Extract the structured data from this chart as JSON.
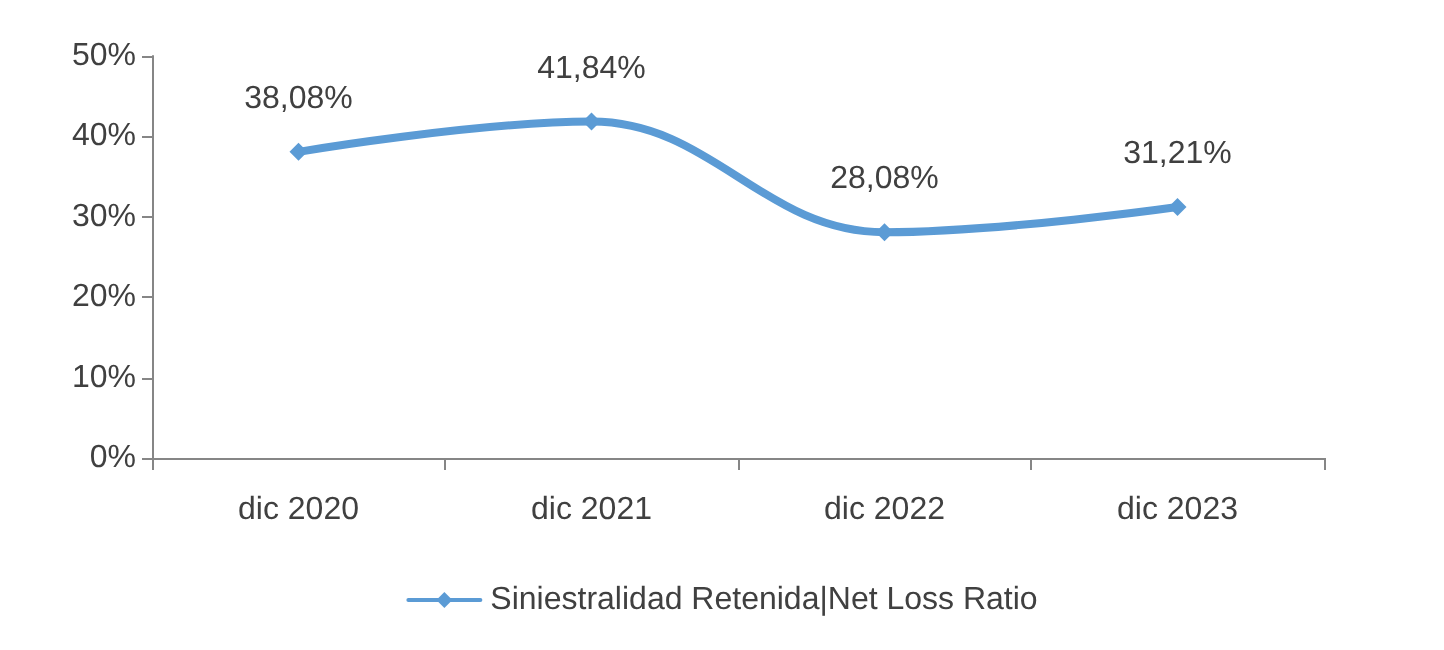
{
  "chart_data": {
    "type": "line",
    "categories": [
      "dic 2020",
      "dic 2021",
      "dic 2022",
      "dic 2023"
    ],
    "series": [
      {
        "name": "Siniestralidad Retenida|Net Loss Ratio",
        "color": "#5b9bd5",
        "values": [
          38.08,
          41.84,
          28.08,
          31.21
        ],
        "value_labels": [
          "38,08%",
          "41,84%",
          "28,08%",
          "31,21%"
        ]
      }
    ],
    "ylim": [
      0,
      50
    ],
    "yticks": [
      {
        "value": 0,
        "label": "0%"
      },
      {
        "value": 10,
        "label": "10%"
      },
      {
        "value": 20,
        "label": "20%"
      },
      {
        "value": 30,
        "label": "30%"
      },
      {
        "value": 40,
        "label": "40%"
      },
      {
        "value": 50,
        "label": "50%"
      }
    ],
    "grid": false,
    "legend": "bottom",
    "marker": "diamond",
    "line_style": "solid"
  }
}
